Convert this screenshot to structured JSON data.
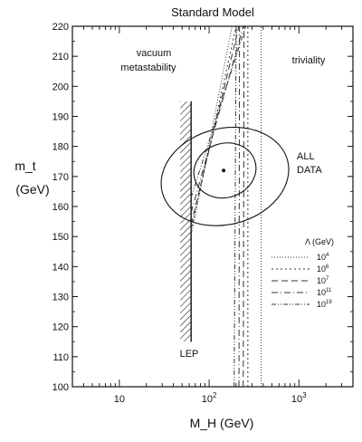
{
  "chart_data": {
    "type": "line",
    "title": "Standard Model",
    "xlabel": "M_H (GeV)",
    "ylabel": "m_t",
    "ylabel_unit": "(GeV)",
    "xscale": "log",
    "xlim": [
      3,
      4000
    ],
    "ylim": [
      100,
      220
    ],
    "x_ticks": [
      {
        "value": 10,
        "base": "10",
        "exp": ""
      },
      {
        "value": 100,
        "base": "10",
        "exp": "2"
      },
      {
        "value": 1000,
        "base": "10",
        "exp": "3"
      }
    ],
    "y_ticks": [
      100,
      110,
      120,
      130,
      140,
      150,
      160,
      170,
      180,
      190,
      200,
      210,
      220
    ],
    "annotations": {
      "vacuum": [
        "vacuum",
        "metastability"
      ],
      "triviality": "triviality",
      "all_data": [
        "ALL",
        "DATA"
      ],
      "lep": "LEP"
    },
    "lep_bound": {
      "mh": 63,
      "mt_range": [
        115,
        195
      ]
    },
    "best_fit": {
      "mh": 145,
      "mt": 172
    },
    "contours": [
      {
        "cx_mh": 150,
        "cy_mt": 172,
        "rx_decades": 0.35,
        "ry_gev": 9,
        "tilt_deg": -18
      },
      {
        "cx_mh": 150,
        "cy_mt": 170,
        "rx_decades": 0.72,
        "ry_gev": 16,
        "tilt_deg": -14
      }
    ],
    "legend_title": "Λ (GeV)",
    "series": [
      {
        "name": "10",
        "exp": "4",
        "dash": "1,2",
        "lower": [
          [
            63,
            150
          ],
          [
            180,
            220
          ]
        ],
        "upper": [
          [
            380,
            100
          ],
          [
            380,
            220
          ]
        ]
      },
      {
        "name": "10",
        "exp": "6",
        "dash": "2,3",
        "lower": [
          [
            63,
            152
          ],
          [
            200,
            220
          ]
        ],
        "upper": [
          [
            270,
            100
          ],
          [
            270,
            220
          ]
        ]
      },
      {
        "name": "10",
        "exp": "7",
        "dash": "7,4",
        "lower": [
          [
            63,
            154
          ],
          [
            215,
            220
          ]
        ],
        "upper": [
          [
            240,
            100
          ],
          [
            245,
            220
          ]
        ]
      },
      {
        "name": "10",
        "exp": "11",
        "dash": "7,3,1,3",
        "lower": [
          [
            63,
            158
          ],
          [
            240,
            220
          ]
        ],
        "upper": [
          [
            215,
            100
          ],
          [
            218,
            220
          ]
        ]
      },
      {
        "name": "10",
        "exp": "19",
        "dash": "5,2,1,2,1,2",
        "lower": [
          [
            63,
            163
          ],
          [
            255,
            220
          ]
        ],
        "upper": [
          [
            190,
            100
          ],
          [
            200,
            220
          ]
        ]
      }
    ]
  }
}
